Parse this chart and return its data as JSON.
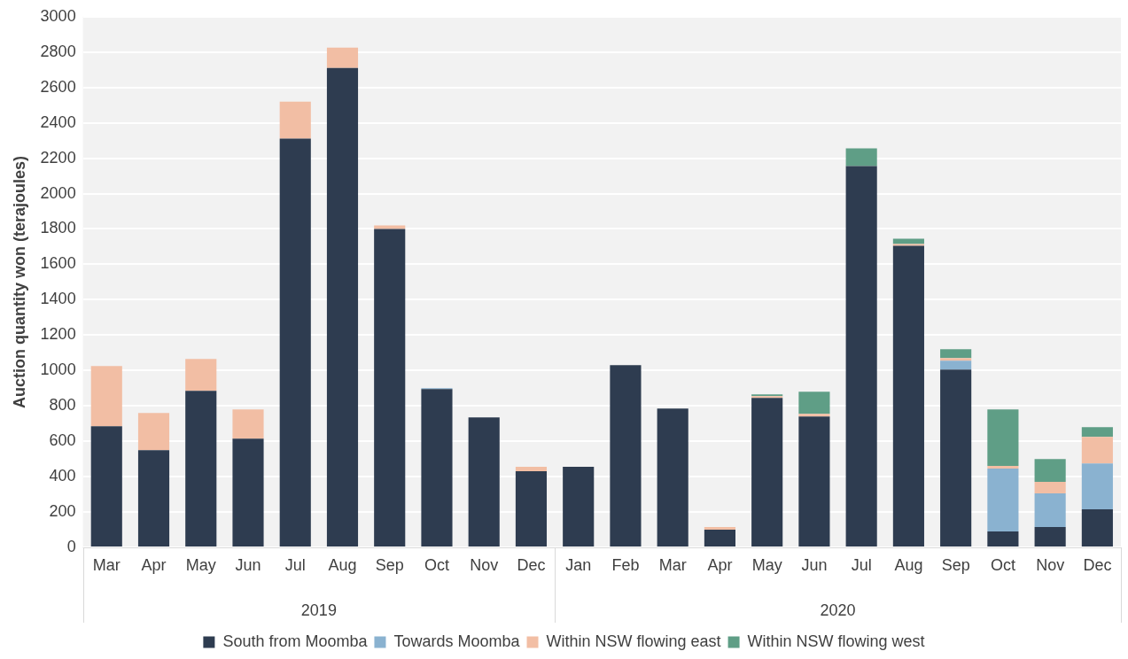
{
  "chart_data": {
    "type": "bar",
    "stacked": true,
    "ylabel": "Auction quantity won (terajoules)",
    "categories": [
      "Mar",
      "Apr",
      "May",
      "Jun",
      "Jul",
      "Aug",
      "Sep",
      "Oct",
      "Nov",
      "Dec",
      "Jan",
      "Feb",
      "Mar",
      "Apr",
      "May",
      "Jun",
      "Jul",
      "Aug",
      "Sep",
      "Oct",
      "Nov",
      "Dec"
    ],
    "series": [
      {
        "name": "South from Moomba",
        "color": "#2e3c50",
        "values": [
          685,
          550,
          885,
          615,
          2310,
          2710,
          1800,
          895,
          735,
          430,
          455,
          1030,
          785,
          100,
          845,
          740,
          2155,
          1705,
          1005,
          90,
          115,
          215
        ]
      },
      {
        "name": "Towards Moomba",
        "color": "#8ab2d0",
        "values": [
          0,
          0,
          0,
          0,
          0,
          0,
          0,
          5,
          0,
          0,
          0,
          0,
          0,
          0,
          0,
          0,
          0,
          0,
          50,
          355,
          190,
          260
        ]
      },
      {
        "name": "Within NSW flowing east",
        "color": "#f2bea4",
        "values": [
          340,
          210,
          180,
          165,
          210,
          115,
          20,
          0,
          0,
          25,
          0,
          0,
          0,
          15,
          10,
          15,
          0,
          10,
          15,
          15,
          65,
          150
        ]
      },
      {
        "name": "Within NSW flowing west",
        "color": "#5f9e86",
        "values": [
          0,
          0,
          0,
          0,
          0,
          0,
          0,
          0,
          0,
          0,
          0,
          0,
          0,
          0,
          10,
          125,
          100,
          30,
          50,
          320,
          130,
          55
        ]
      }
    ],
    "ylim": [
      0,
      3000
    ],
    "yticks": [
      0,
      200,
      400,
      600,
      800,
      1000,
      1200,
      1400,
      1600,
      1800,
      2000,
      2200,
      2400,
      2600,
      2800,
      3000
    ],
    "grid": "y",
    "legend": "bottom",
    "annotations": [
      "2019",
      "2020"
    ]
  }
}
